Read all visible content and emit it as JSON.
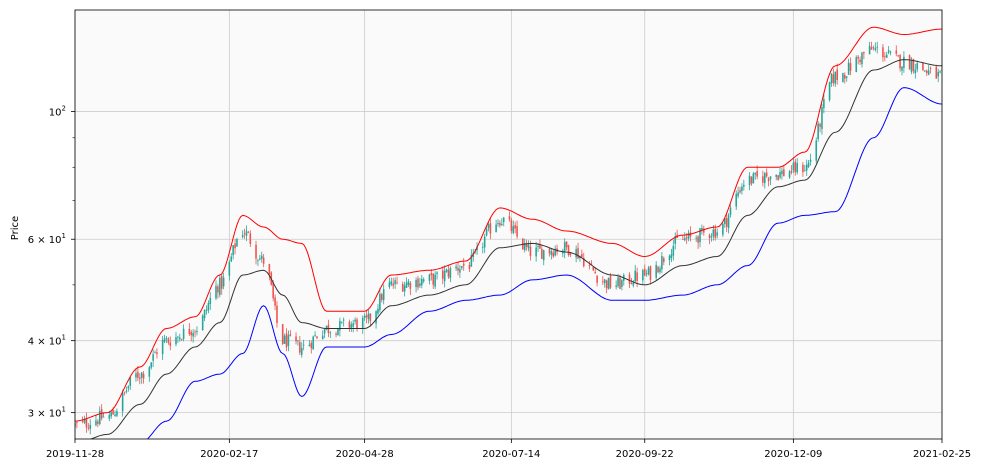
{
  "chart_data": {
    "type": "candlestick",
    "title": "",
    "ylabel": "Price",
    "xlabel": "",
    "yscale": "log",
    "ylim": [
      27,
      150
    ],
    "grid": true,
    "x_range": [
      "2019-11-28",
      "2021-02-25"
    ],
    "x_ticks": [
      "2019-11-28",
      "2020-02-17",
      "2020-04-28",
      "2020-07-14",
      "2020-09-22",
      "2020-12-09",
      "2021-02-25"
    ],
    "y_ticks": [
      {
        "value": 30,
        "label": "3 × 10",
        "exp": "1"
      },
      {
        "value": 40,
        "label": "4 × 10",
        "exp": "1"
      },
      {
        "value": 60,
        "label": "6 × 10",
        "exp": "1"
      },
      {
        "value": 100,
        "label": "10",
        "exp": "2"
      }
    ],
    "y_minor_ticks": [
      50,
      70,
      80,
      90
    ],
    "colors": {
      "up": "#26a69a",
      "down": "#ef5350",
      "upper_band": "#ff0000",
      "middle_band": "#333333",
      "lower_band": "#0000ff",
      "plot_bg": "#fafafa",
      "grid": "#cccccc"
    },
    "anchors": [
      {
        "date": "2019-11-28",
        "close": 28.5,
        "upper": 29.0,
        "middle": 26.5,
        "lower": 25.0
      },
      {
        "date": "2019-12-15",
        "close": 29.5,
        "upper": 30.0,
        "middle": 27.5,
        "lower": 25.5
      },
      {
        "date": "2020-01-01",
        "close": 35.0,
        "upper": 36.0,
        "middle": 31.0,
        "lower": 26.5
      },
      {
        "date": "2020-01-15",
        "close": 40.0,
        "upper": 42.0,
        "middle": 35.0,
        "lower": 29.0
      },
      {
        "date": "2020-01-30",
        "close": 42.0,
        "upper": 44.0,
        "middle": 39.0,
        "lower": 34.0
      },
      {
        "date": "2020-02-12",
        "close": 50.0,
        "upper": 52.0,
        "middle": 43.0,
        "lower": 35.0
      },
      {
        "date": "2020-02-24",
        "close": 62.0,
        "upper": 66.0,
        "middle": 52.0,
        "lower": 38.0
      },
      {
        "date": "2020-03-06",
        "close": 55.0,
        "upper": 63.0,
        "middle": 53.0,
        "lower": 46.0
      },
      {
        "date": "2020-03-16",
        "close": 40.0,
        "upper": 60.0,
        "middle": 48.0,
        "lower": 38.0
      },
      {
        "date": "2020-03-26",
        "close": 39.0,
        "upper": 59.0,
        "middle": 43.0,
        "lower": 32.0
      },
      {
        "date": "2020-04-08",
        "close": 42.0,
        "upper": 45.0,
        "middle": 42.0,
        "lower": 39.0
      },
      {
        "date": "2020-04-28",
        "close": 43.0,
        "upper": 45.0,
        "middle": 42.0,
        "lower": 39.0
      },
      {
        "date": "2020-05-12",
        "close": 50.0,
        "upper": 52.0,
        "middle": 46.0,
        "lower": 41.0
      },
      {
        "date": "2020-06-01",
        "close": 51.0,
        "upper": 53.0,
        "middle": 48.0,
        "lower": 45.0
      },
      {
        "date": "2020-06-20",
        "close": 54.0,
        "upper": 55.0,
        "middle": 50.0,
        "lower": 47.0
      },
      {
        "date": "2020-07-08",
        "close": 65.0,
        "upper": 68.0,
        "middle": 58.0,
        "lower": 48.0
      },
      {
        "date": "2020-07-25",
        "close": 57.0,
        "upper": 65.0,
        "middle": 59.0,
        "lower": 51.0
      },
      {
        "date": "2020-08-12",
        "close": 58.0,
        "upper": 62.0,
        "middle": 57.0,
        "lower": 52.0
      },
      {
        "date": "2020-09-05",
        "close": 50.0,
        "upper": 59.0,
        "middle": 52.0,
        "lower": 47.0
      },
      {
        "date": "2020-09-22",
        "close": 52.0,
        "upper": 56.0,
        "middle": 50.0,
        "lower": 47.0
      },
      {
        "date": "2020-10-12",
        "close": 60.0,
        "upper": 61.0,
        "middle": 54.0,
        "lower": 48.0
      },
      {
        "date": "2020-10-30",
        "close": 62.0,
        "upper": 63.0,
        "middle": 56.0,
        "lower": 50.0
      },
      {
        "date": "2020-11-15",
        "close": 76.0,
        "upper": 80.0,
        "middle": 66.0,
        "lower": 54.0
      },
      {
        "date": "2020-12-01",
        "close": 78.0,
        "upper": 80.0,
        "middle": 74.0,
        "lower": 64.0
      },
      {
        "date": "2020-12-15",
        "close": 80.0,
        "upper": 85.0,
        "middle": 76.0,
        "lower": 66.0
      },
      {
        "date": "2020-12-31",
        "close": 115.0,
        "upper": 120.0,
        "middle": 92.0,
        "lower": 67.0
      },
      {
        "date": "2021-01-20",
        "close": 128.0,
        "upper": 140.0,
        "middle": 118.0,
        "lower": 90.0
      },
      {
        "date": "2021-02-05",
        "close": 122.0,
        "upper": 136.0,
        "middle": 123.0,
        "lower": 110.0
      },
      {
        "date": "2021-02-25",
        "close": 115.0,
        "upper": 139.0,
        "middle": 120.0,
        "lower": 103.0
      }
    ]
  }
}
